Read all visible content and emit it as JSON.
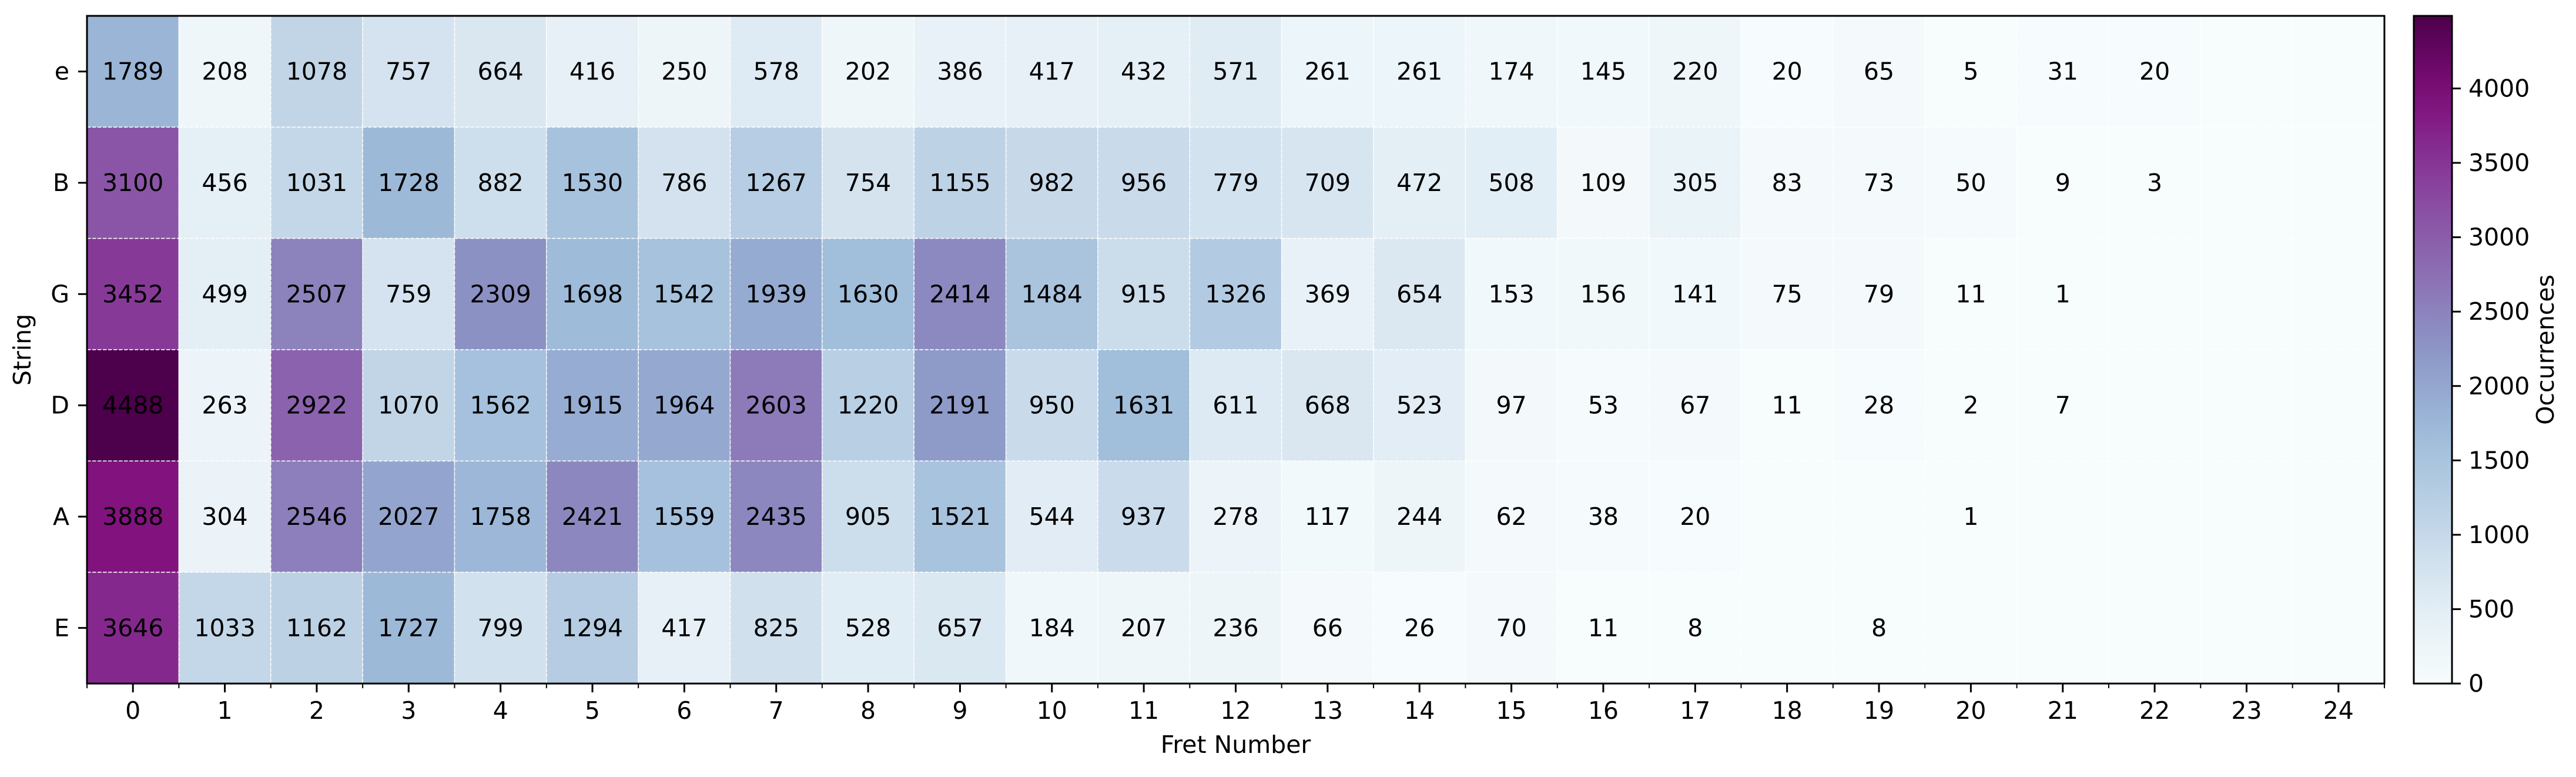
{
  "chart_data": {
    "type": "heatmap",
    "title": "",
    "xlabel": "Fret Number",
    "ylabel": "String",
    "colorbar_label": "Occurrences",
    "x_categories": [
      "0",
      "1",
      "2",
      "3",
      "4",
      "5",
      "6",
      "7",
      "8",
      "9",
      "10",
      "11",
      "12",
      "13",
      "14",
      "15",
      "16",
      "17",
      "18",
      "19",
      "20",
      "21",
      "22",
      "23",
      "24"
    ],
    "y_categories": [
      "e",
      "B",
      "G",
      "D",
      "A",
      "E"
    ],
    "values": [
      [
        1789,
        208,
        1078,
        757,
        664,
        416,
        250,
        578,
        202,
        386,
        417,
        432,
        571,
        261,
        261,
        174,
        145,
        220,
        20,
        65,
        5,
        31,
        20,
        0,
        0
      ],
      [
        3100,
        456,
        1031,
        1728,
        882,
        1530,
        786,
        1267,
        754,
        1155,
        982,
        956,
        779,
        709,
        472,
        508,
        109,
        305,
        83,
        73,
        50,
        9,
        3,
        0,
        0
      ],
      [
        3452,
        499,
        2507,
        759,
        2309,
        1698,
        1542,
        1939,
        1630,
        2414,
        1484,
        915,
        1326,
        369,
        654,
        153,
        156,
        141,
        75,
        79,
        11,
        1,
        0,
        0,
        0
      ],
      [
        4488,
        263,
        2922,
        1070,
        1562,
        1915,
        1964,
        2603,
        1220,
        2191,
        950,
        1631,
        611,
        668,
        523,
        97,
        53,
        67,
        11,
        28,
        2,
        7,
        0,
        0,
        0
      ],
      [
        3888,
        304,
        2546,
        2027,
        1758,
        2421,
        1559,
        2435,
        905,
        1521,
        544,
        937,
        278,
        117,
        244,
        62,
        38,
        20,
        0,
        0,
        1,
        0,
        0,
        0,
        0
      ],
      [
        3646,
        1033,
        1162,
        1727,
        799,
        1294,
        417,
        825,
        528,
        657,
        184,
        207,
        236,
        66,
        26,
        70,
        11,
        8,
        0,
        8,
        0,
        0,
        0,
        0,
        0
      ]
    ],
    "color_range": [
      0,
      4488
    ],
    "colorbar_ticks": [
      0,
      500,
      1000,
      1500,
      2000,
      2500,
      3000,
      3500,
      4000
    ],
    "colormap": "BuPu",
    "show_zero_labels": false,
    "grid": true
  }
}
